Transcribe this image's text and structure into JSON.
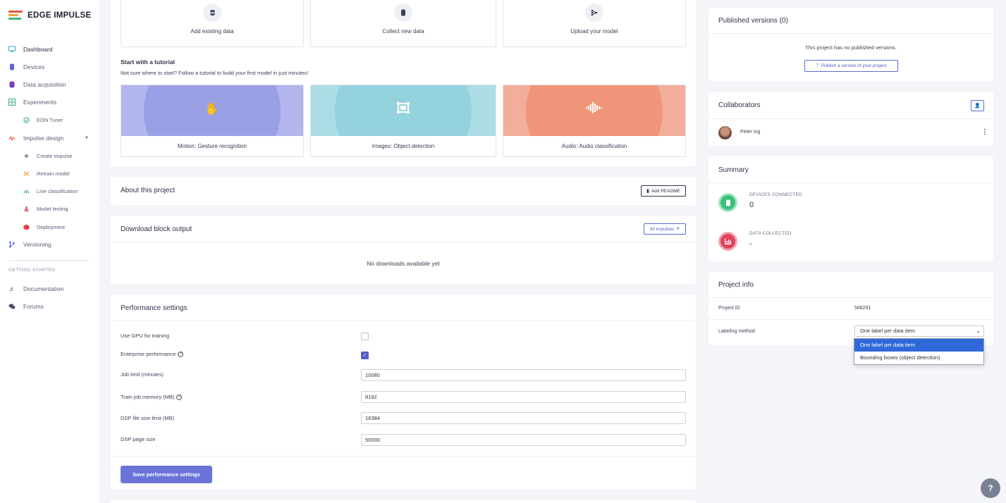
{
  "brand": {
    "name": "EDGE IMPULSE"
  },
  "sidebar": {
    "items": [
      {
        "label": "Dashboard",
        "icon": "monitor-icon"
      },
      {
        "label": "Devices",
        "icon": "device-icon"
      },
      {
        "label": "Data acquisition",
        "icon": "database-icon"
      },
      {
        "label": "Experiments",
        "icon": "grid-icon"
      },
      {
        "label": "EON Tuner",
        "icon": "target-icon"
      },
      {
        "label": "Impulse design",
        "icon": "pulse-icon"
      },
      {
        "label": "Create impulse",
        "icon": "dot-icon"
      },
      {
        "label": "Retrain model",
        "icon": "shuffle-icon"
      },
      {
        "label": "Live classification",
        "icon": "live-icon"
      },
      {
        "label": "Model testing",
        "icon": "flask-icon"
      },
      {
        "label": "Deployment",
        "icon": "package-icon"
      },
      {
        "label": "Versioning",
        "icon": "branch-icon"
      }
    ],
    "section_label": "GETTING STARTED",
    "help_items": [
      {
        "label": "Documentation",
        "icon": "doc-icon"
      },
      {
        "label": "Forums",
        "icon": "chat-icon"
      }
    ]
  },
  "data_tiles": [
    {
      "label": "Add existing data",
      "icon": "database-icon"
    },
    {
      "label": "Collect new data",
      "icon": "chip-icon"
    },
    {
      "label": "Upload your model",
      "icon": "upload-model-icon"
    }
  ],
  "tutorials": {
    "title": "Start with a tutorial",
    "subtitle": "Not sure where to start? Follow a tutorial to build your first model in just minutes!",
    "items": [
      {
        "label": "Motion: Gesture recognition",
        "icon": "hand-icon",
        "color": "#9aa0e6",
        "ring": "#b2b6ec"
      },
      {
        "label": "Images: Object detection",
        "icon": "object-detect-icon",
        "color": "#94d3de",
        "ring": "#acdde6"
      },
      {
        "label": "Audio: Audio classification",
        "icon": "waveform-icon",
        "color": "#f0957a",
        "ring": "#f3ae9b"
      }
    ]
  },
  "about": {
    "title": "About this project",
    "button": "Add README"
  },
  "download": {
    "title": "Download block output",
    "filter": "All impulses",
    "empty": "No downloads available yet"
  },
  "performance": {
    "title": "Performance settings",
    "gpu_label": "Use GPU for training",
    "gpu_checked": false,
    "enterprise_label": "Enterprise performance",
    "enterprise_checked": true,
    "fields": [
      {
        "label": "Job limit (minutes)",
        "value": "10080",
        "help": false
      },
      {
        "label": "Train job memory (MB)",
        "value": "8192",
        "help": true
      },
      {
        "label": "DSP file size limit (MB)",
        "value": "16384",
        "help": false
      },
      {
        "label": "DSP page size",
        "value": "50000",
        "help": false
      }
    ],
    "save_button": "Save performance settings"
  },
  "published": {
    "title": "Published versions (0)",
    "empty": "This project has no published versions.",
    "button": "Publish a version of your project"
  },
  "collaborators": {
    "title": "Collaborators",
    "people": [
      {
        "name": "Peter Ing"
      }
    ]
  },
  "summary": {
    "title": "Summary",
    "stats": [
      {
        "label": "DEVICES CONNECTED",
        "value": "0",
        "color": "#3cc17a",
        "ring": "#a6e4c2",
        "icon": "chip-icon"
      },
      {
        "label": "DATA COLLECTED",
        "value": "-",
        "color": "#e0435c",
        "ring": "#f1a5b1",
        "icon": "chart-icon"
      }
    ]
  },
  "project_info": {
    "title": "Project info",
    "id_label": "Project ID",
    "id_value": "568291",
    "labeling_label": "Labeling method",
    "labeling_value": "One label per data item",
    "labeling_options": [
      "One label per data item",
      "Bounding boxes (object detection)"
    ]
  }
}
